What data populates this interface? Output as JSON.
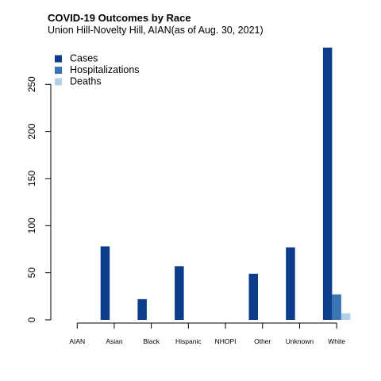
{
  "chart_data": {
    "type": "bar",
    "title": "COVID-19 Outcomes by Race",
    "subtitle": "Union Hill-Novelty Hill, AIAN(as of Aug. 30, 2021)",
    "xlabel": "",
    "ylabel": "",
    "categories": [
      "AIAN",
      "Asian",
      "Black",
      "Hispanic",
      "NHOPI",
      "Other",
      "Unknown",
      "White"
    ],
    "series": [
      {
        "name": "Cases",
        "color": "#0b3d8c",
        "values": [
          0,
          78,
          22,
          57,
          0,
          49,
          77,
          289
        ]
      },
      {
        "name": "Hospitalizations",
        "color": "#3a75b5",
        "values": [
          0,
          0,
          0,
          0,
          0,
          0,
          0,
          27
        ]
      },
      {
        "name": "Deaths",
        "color": "#b3cfe6",
        "values": [
          0,
          0,
          0,
          0,
          0,
          0,
          0,
          7
        ]
      }
    ],
    "yticks": [
      0,
      50,
      100,
      150,
      200,
      250
    ],
    "ylim": [
      0,
      289
    ],
    "legend_position": "top-left",
    "grid": false
  }
}
